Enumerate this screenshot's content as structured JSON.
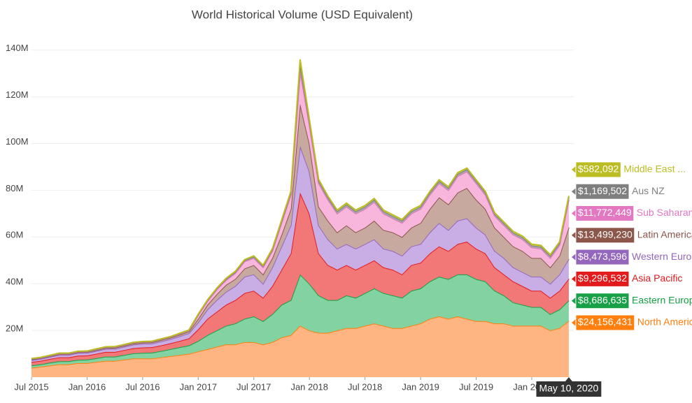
{
  "chart_data": {
    "type": "stacked_area",
    "title": "World Historical Volume (USD Equivalent)",
    "x": [
      "2015-07",
      "2015-08",
      "2015-09",
      "2015-10",
      "2015-11",
      "2015-12",
      "2016-01",
      "2016-02",
      "2016-03",
      "2016-04",
      "2016-05",
      "2016-06",
      "2016-07",
      "2016-08",
      "2016-09",
      "2016-10",
      "2016-11",
      "2016-12",
      "2017-01",
      "2017-02",
      "2017-03",
      "2017-04",
      "2017-05",
      "2017-06",
      "2017-07",
      "2017-08",
      "2017-09",
      "2017-10",
      "2017-11",
      "2017-12",
      "2018-01",
      "2018-02",
      "2018-03",
      "2018-04",
      "2018-05",
      "2018-06",
      "2018-07",
      "2018-08",
      "2018-09",
      "2018-10",
      "2018-11",
      "2018-12",
      "2019-01",
      "2019-02",
      "2019-03",
      "2019-04",
      "2019-05",
      "2019-06",
      "2019-07",
      "2019-08",
      "2019-09",
      "2019-10",
      "2019-11",
      "2019-12",
      "2020-01",
      "2020-02",
      "2020-03",
      "2020-04",
      "2020-05"
    ],
    "xticks": [
      {
        "value": "2015-07",
        "label": "Jul 2015"
      },
      {
        "value": "2016-01",
        "label": "Jan 2016"
      },
      {
        "value": "2016-07",
        "label": "Jul 2016"
      },
      {
        "value": "2017-01",
        "label": "Jan 2017"
      },
      {
        "value": "2017-07",
        "label": "Jul 2017"
      },
      {
        "value": "2018-01",
        "label": "Jan 2018"
      },
      {
        "value": "2018-07",
        "label": "Jul 2018"
      },
      {
        "value": "2019-01",
        "label": "Jan 2019"
      },
      {
        "value": "2019-07",
        "label": "Jul 2019"
      },
      {
        "value": "2020-01",
        "label": "Jan 2020"
      }
    ],
    "ylim": [
      0,
      145
    ],
    "yticks": [
      {
        "value": 20,
        "label": "20M"
      },
      {
        "value": 40,
        "label": "40M"
      },
      {
        "value": 60,
        "label": "60M"
      },
      {
        "value": 80,
        "label": "80M"
      },
      {
        "value": 100,
        "label": "100M"
      },
      {
        "value": 120,
        "label": "120M"
      },
      {
        "value": 140,
        "label": "140M"
      }
    ],
    "hover_date": "May 10, 2020",
    "series": [
      {
        "name": "North America",
        "color": "#ff7f0e",
        "fill": "#ffb582",
        "values": [
          4,
          4.5,
          5,
          5.5,
          5.5,
          6,
          6,
          6.5,
          7,
          7,
          7.5,
          8,
          8,
          8,
          8.5,
          9,
          9.5,
          10,
          11,
          12,
          13,
          14,
          14,
          15,
          15,
          14,
          15,
          17,
          18,
          22,
          20,
          19,
          19,
          20,
          21,
          21,
          22,
          23,
          22,
          21,
          21,
          22,
          23,
          25,
          26,
          25,
          26,
          25,
          24,
          24,
          23,
          23,
          22,
          22,
          22,
          22,
          20,
          21,
          24.156431
        ],
        "value_labels": [
          null,
          null,
          null,
          null,
          null,
          null,
          null,
          null,
          null,
          null,
          null,
          null,
          null,
          null,
          null,
          null,
          null,
          null,
          null,
          null,
          null,
          null,
          null,
          null,
          null,
          null,
          null,
          null,
          null,
          null,
          null,
          null,
          null,
          null,
          null,
          null,
          null,
          null,
          null,
          null,
          null,
          null,
          null,
          null,
          null,
          null,
          null,
          null,
          null,
          null,
          null,
          null,
          null,
          null,
          null,
          null,
          null,
          null,
          "$24,156,431"
        ]
      },
      {
        "name": "Eastern Europe",
        "color": "#17a045",
        "fill": "#82d3a1",
        "values": [
          1,
          1,
          1.2,
          1.3,
          1.3,
          1.4,
          1.5,
          1.6,
          1.8,
          1.8,
          2,
          2.2,
          2.4,
          2.5,
          2.7,
          3,
          3.3,
          3.6,
          4.5,
          6,
          7,
          8,
          9,
          10,
          11,
          10,
          12,
          14,
          15,
          22,
          20,
          16,
          14,
          13,
          14,
          13,
          14,
          15,
          14,
          14,
          13,
          15,
          15,
          16,
          17,
          17,
          18,
          19,
          18,
          17,
          14,
          12,
          10,
          9,
          8,
          8,
          7,
          8,
          8.686635
        ],
        "value_labels": [
          null,
          null,
          null,
          null,
          null,
          null,
          null,
          null,
          null,
          null,
          null,
          null,
          null,
          null,
          null,
          null,
          null,
          null,
          null,
          null,
          null,
          null,
          null,
          null,
          null,
          null,
          null,
          null,
          null,
          null,
          null,
          null,
          null,
          null,
          null,
          null,
          null,
          null,
          null,
          null,
          null,
          null,
          null,
          null,
          null,
          null,
          null,
          null,
          null,
          null,
          null,
          null,
          null,
          null,
          null,
          null,
          null,
          null,
          "$8,686,635"
        ]
      },
      {
        "name": "Asia Pacific",
        "color": "#e31a1c",
        "fill": "#f27878",
        "values": [
          1.5,
          1.5,
          1.6,
          1.7,
          1.7,
          1.8,
          1.8,
          1.9,
          2,
          2,
          2.1,
          2.2,
          2.3,
          2.3,
          2.4,
          2.5,
          2.7,
          3,
          5,
          7,
          8,
          9,
          10,
          11,
          11,
          10,
          12,
          15,
          20,
          35,
          30,
          18,
          15,
          13,
          13,
          12,
          12,
          12,
          11,
          11,
          10,
          11,
          11,
          12,
          13,
          12,
          13,
          14,
          13,
          12,
          10,
          9,
          9,
          8,
          7,
          7,
          7,
          8,
          9.296532
        ],
        "value_labels": [
          null,
          null,
          null,
          null,
          null,
          null,
          null,
          null,
          null,
          null,
          null,
          null,
          null,
          null,
          null,
          null,
          null,
          null,
          null,
          null,
          null,
          null,
          null,
          null,
          null,
          null,
          null,
          null,
          null,
          null,
          null,
          null,
          null,
          null,
          null,
          null,
          null,
          null,
          null,
          null,
          null,
          null,
          null,
          null,
          null,
          null,
          null,
          null,
          null,
          null,
          null,
          null,
          null,
          null,
          null,
          null,
          null,
          null,
          "$9,296,532"
        ]
      },
      {
        "name": "Western Europe",
        "color": "#9467bd",
        "fill": "#c9aee6",
        "values": [
          0.8,
          0.8,
          0.9,
          1,
          1,
          1.1,
          1.1,
          1.2,
          1.3,
          1.3,
          1.4,
          1.5,
          1.6,
          1.6,
          1.7,
          1.8,
          2,
          2.2,
          3,
          4,
          5,
          5.5,
          6,
          7,
          7,
          6,
          8,
          10,
          12,
          20,
          18,
          12,
          11,
          9,
          9,
          9,
          9,
          9,
          8,
          8,
          8,
          8,
          8,
          9,
          10,
          9,
          10,
          10,
          9,
          8,
          7,
          7,
          6,
          6,
          6,
          6,
          6,
          7,
          8.473596
        ],
        "value_labels": [
          null,
          null,
          null,
          null,
          null,
          null,
          null,
          null,
          null,
          null,
          null,
          null,
          null,
          null,
          null,
          null,
          null,
          null,
          null,
          null,
          null,
          null,
          null,
          null,
          null,
          null,
          null,
          null,
          null,
          null,
          null,
          null,
          null,
          null,
          null,
          null,
          null,
          null,
          null,
          null,
          null,
          null,
          null,
          null,
          null,
          null,
          null,
          null,
          null,
          null,
          null,
          null,
          null,
          null,
          null,
          null,
          null,
          null,
          "$8,473,596"
        ]
      },
      {
        "name": "Latin America",
        "color": "#8c564b",
        "fill": "#c8a99f",
        "values": [
          0.3,
          0.3,
          0.3,
          0.4,
          0.4,
          0.4,
          0.4,
          0.4,
          0.4,
          0.5,
          0.5,
          0.5,
          0.5,
          0.5,
          0.6,
          0.6,
          0.7,
          0.8,
          1.5,
          2,
          2.5,
          3,
          3,
          3.5,
          4,
          4,
          4,
          5,
          7,
          18,
          12,
          8,
          8,
          7,
          8,
          7,
          7,
          8,
          8,
          8,
          8,
          8,
          9,
          10,
          11,
          11,
          12,
          13,
          12,
          11,
          10,
          9,
          9,
          9,
          8,
          8,
          7,
          8,
          13.49923
        ],
        "value_labels": [
          null,
          null,
          null,
          null,
          null,
          null,
          null,
          null,
          null,
          null,
          null,
          null,
          null,
          null,
          null,
          null,
          null,
          null,
          null,
          null,
          null,
          null,
          null,
          null,
          null,
          null,
          null,
          null,
          null,
          null,
          null,
          null,
          null,
          null,
          null,
          null,
          null,
          null,
          null,
          null,
          null,
          null,
          null,
          null,
          null,
          null,
          null,
          null,
          null,
          null,
          null,
          null,
          null,
          null,
          null,
          null,
          null,
          null,
          "$13,499,230"
        ]
      },
      {
        "name": "Sub Saharan ..",
        "color": "#e377c2",
        "fill": "#f8b6dc",
        "values": [
          0.2,
          0.2,
          0.2,
          0.2,
          0.2,
          0.2,
          0.2,
          0.3,
          0.3,
          0.3,
          0.3,
          0.3,
          0.3,
          0.3,
          0.3,
          0.3,
          0.4,
          0.4,
          1.5,
          1.5,
          2,
          2,
          2.5,
          3,
          3,
          3,
          3,
          5,
          6,
          14,
          8,
          10,
          9,
          8,
          8,
          8,
          8,
          8,
          7,
          6,
          6,
          6,
          6,
          6,
          6,
          6,
          7,
          7,
          7,
          6,
          5,
          5,
          5,
          5,
          4.5,
          4,
          4,
          4.5,
          11.772449
        ],
        "value_labels": [
          null,
          null,
          null,
          null,
          null,
          null,
          null,
          null,
          null,
          null,
          null,
          null,
          null,
          null,
          null,
          null,
          null,
          null,
          null,
          null,
          null,
          null,
          null,
          null,
          null,
          null,
          null,
          null,
          null,
          null,
          null,
          null,
          null,
          null,
          null,
          null,
          null,
          null,
          null,
          null,
          null,
          null,
          null,
          null,
          null,
          null,
          null,
          null,
          null,
          null,
          null,
          null,
          null,
          null,
          null,
          null,
          null,
          null,
          "$11,772,449"
        ]
      },
      {
        "name": "Aus NZ",
        "color": "#7f7f7f",
        "fill": "#a6a6a6",
        "values": [
          0.1,
          0.1,
          0.1,
          0.1,
          0.1,
          0.1,
          0.1,
          0.1,
          0.1,
          0.1,
          0.1,
          0.1,
          0.1,
          0.1,
          0.1,
          0.1,
          0.1,
          0.1,
          0.3,
          0.4,
          0.4,
          0.5,
          0.5,
          0.5,
          0.6,
          0.6,
          0.6,
          0.8,
          1,
          3,
          1.5,
          1,
          1,
          1,
          1,
          1,
          1,
          1,
          1,
          1,
          1,
          1,
          1,
          1,
          1,
          1,
          1,
          1,
          1,
          1,
          0.9,
          0.9,
          0.9,
          0.9,
          0.9,
          0.9,
          0.9,
          0.9,
          1.169502
        ],
        "value_labels": [
          null,
          null,
          null,
          null,
          null,
          null,
          null,
          null,
          null,
          null,
          null,
          null,
          null,
          null,
          null,
          null,
          null,
          null,
          null,
          null,
          null,
          null,
          null,
          null,
          null,
          null,
          null,
          null,
          null,
          null,
          null,
          null,
          null,
          null,
          null,
          null,
          null,
          null,
          null,
          null,
          null,
          null,
          null,
          null,
          null,
          null,
          null,
          null,
          null,
          null,
          null,
          null,
          null,
          null,
          null,
          null,
          null,
          null,
          "$1,169,502"
        ]
      },
      {
        "name": "Middle East ...",
        "color": "#bcbd22",
        "fill": "#d4d46a",
        "values": [
          0.1,
          0.1,
          0.1,
          0.1,
          0.1,
          0.1,
          0.1,
          0.1,
          0.1,
          0.1,
          0.1,
          0.1,
          0.1,
          0.1,
          0.1,
          0.1,
          0.1,
          0.1,
          0.2,
          0.2,
          0.2,
          0.3,
          0.3,
          0.3,
          0.3,
          0.3,
          0.4,
          0.5,
          0.6,
          2,
          0.8,
          0.6,
          0.5,
          0.5,
          0.5,
          0.5,
          0.5,
          0.5,
          0.5,
          0.5,
          0.5,
          0.5,
          0.5,
          0.5,
          0.5,
          0.5,
          0.5,
          0.5,
          0.5,
          0.5,
          0.5,
          0.5,
          0.5,
          0.5,
          0.5,
          0.5,
          0.5,
          0.5,
          0.582092
        ],
        "value_labels": [
          null,
          null,
          null,
          null,
          null,
          null,
          null,
          null,
          null,
          null,
          null,
          null,
          null,
          null,
          null,
          null,
          null,
          null,
          null,
          null,
          null,
          null,
          null,
          null,
          null,
          null,
          null,
          null,
          null,
          null,
          null,
          null,
          null,
          null,
          null,
          null,
          null,
          null,
          null,
          null,
          null,
          null,
          null,
          null,
          null,
          null,
          null,
          null,
          null,
          null,
          null,
          null,
          null,
          null,
          null,
          null,
          null,
          null,
          "$582,092"
        ]
      }
    ]
  }
}
